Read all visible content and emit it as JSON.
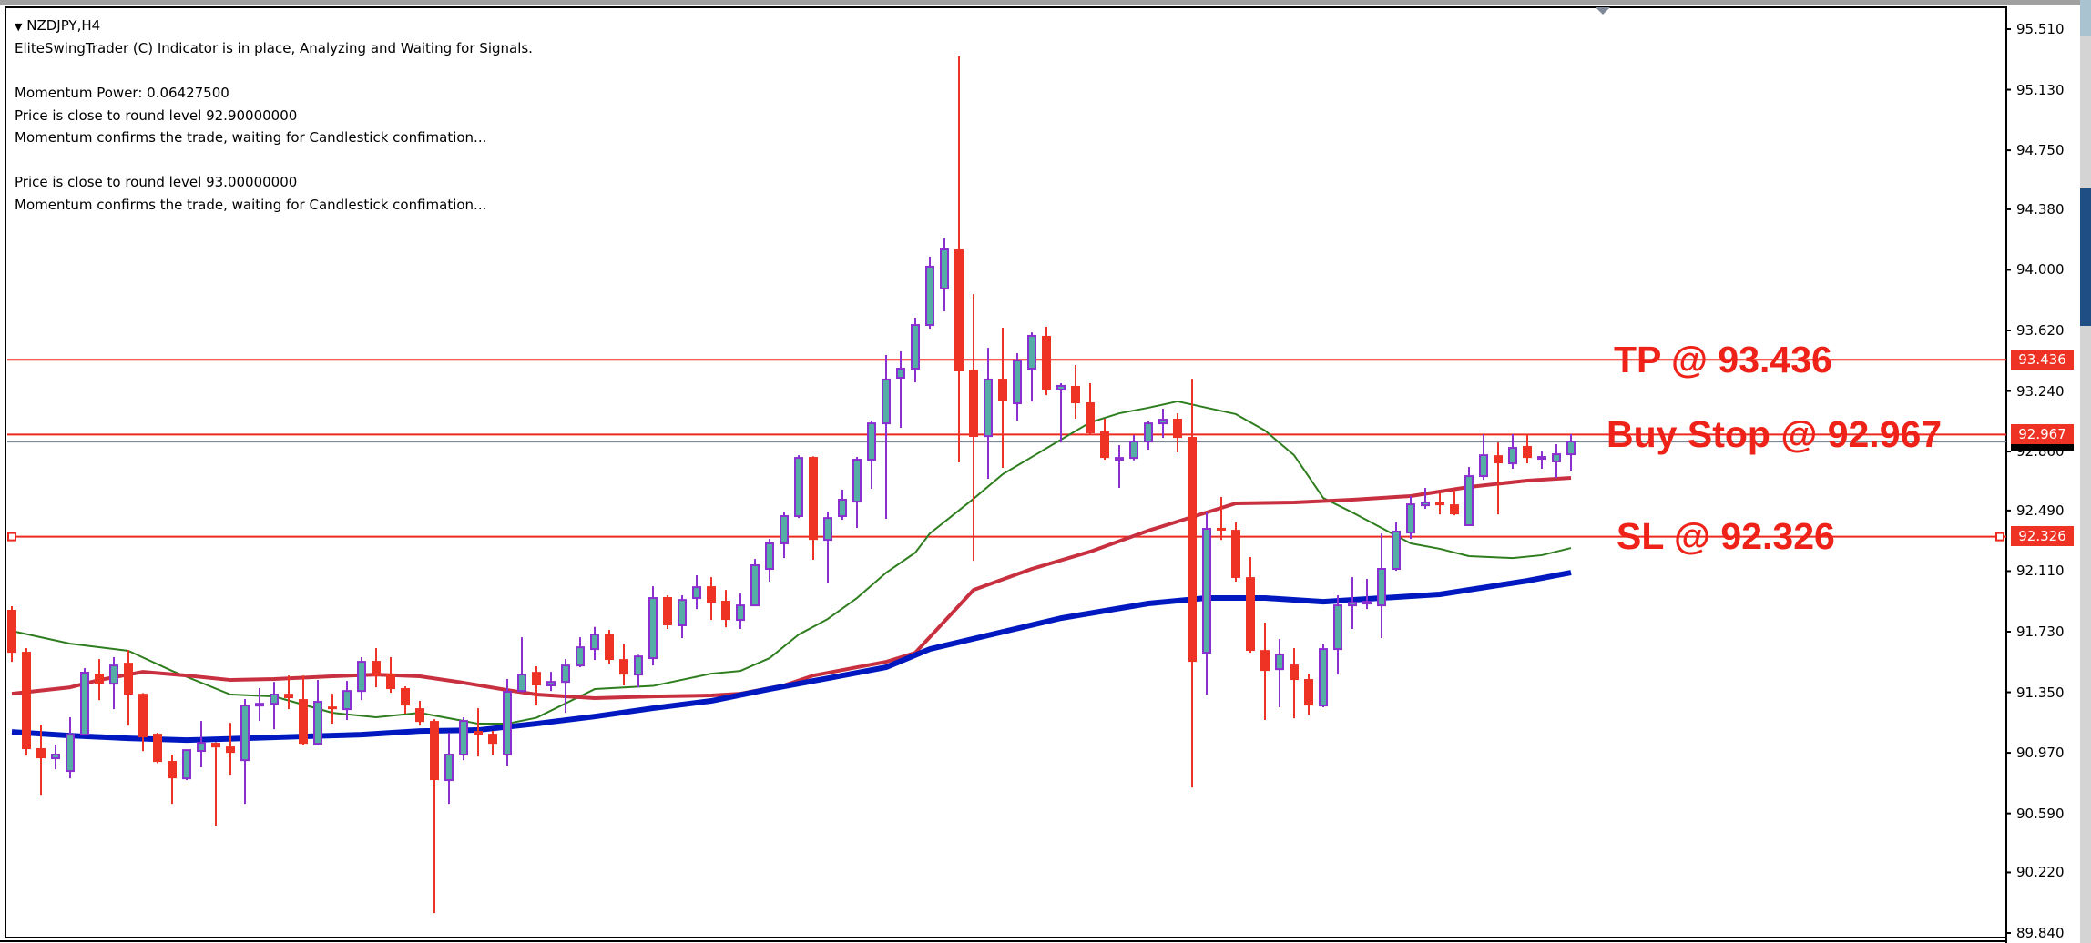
{
  "chart_header": {
    "symbol_timeframe": "NZDJPY,H4",
    "menu_icon": "triangle-down-icon"
  },
  "indicator_messages": [
    "EliteSwingTrader (C) Indicator is in place, Analyzing and Waiting for Signals.",
    "",
    "Momentum Power: 0.06427500",
    "Price is close to round level 92.90000000",
    "Momentum confirms the trade, waiting for Candlestick confimation...",
    "",
    "Price is close to round level 93.00000000",
    "Momentum confirms the trade, waiting for Candlestick confimation..."
  ],
  "signals": {
    "tp": {
      "label": "TP @ 93.436",
      "price": 93.436,
      "axis_label": "93.436"
    },
    "buy_stop": {
      "label": "Buy Stop @ 92.967",
      "price": 92.967,
      "axis_label": "92.967"
    },
    "sl": {
      "label": "SL @ 92.326",
      "price": 92.326,
      "axis_label": "92.326"
    }
  },
  "colors": {
    "bull_fill": "#55aea6",
    "bull_outline": "#8b2fd0",
    "bear": "#ee3224",
    "level_line": "#ee2a20",
    "bid_line": "#7f8896",
    "ma_fast": "#2e7d1e",
    "ma_mid": "#c8303f",
    "ma_slow": "#0018c0"
  },
  "chart_data": {
    "type": "candlestick",
    "symbol": "NZDJPY",
    "timeframe": "H4",
    "ylim": [
      89.84,
      95.51
    ],
    "y_ticks": [
      "95.510",
      "95.130",
      "94.750",
      "94.380",
      "94.000",
      "93.620",
      "93.240",
      "92.860",
      "92.490",
      "92.110",
      "91.730",
      "91.350",
      "90.970",
      "90.590",
      "90.220",
      "89.840"
    ],
    "bid": 92.923,
    "ohlc": [
      [
        91.867,
        91.89,
        91.541,
        91.598
      ],
      [
        91.604,
        91.627,
        90.953,
        90.993
      ],
      [
        90.999,
        91.147,
        90.707,
        90.936
      ],
      [
        90.936,
        91.021,
        90.867,
        90.959
      ],
      [
        90.856,
        91.193,
        90.81,
        91.084
      ],
      [
        91.084,
        91.501,
        91.08,
        91.473
      ],
      [
        91.467,
        91.558,
        91.301,
        91.404
      ],
      [
        91.404,
        91.57,
        91.244,
        91.518
      ],
      [
        91.535,
        91.615,
        91.141,
        91.336
      ],
      [
        91.341,
        91.345,
        90.981,
        91.067
      ],
      [
        91.09,
        91.096,
        90.905,
        90.913
      ],
      [
        90.919,
        90.959,
        90.65,
        90.81
      ],
      [
        90.81,
        90.99,
        90.799,
        90.987
      ],
      [
        90.982,
        91.17,
        90.879,
        91.033
      ],
      [
        91.033,
        91.036,
        90.513,
        91.004
      ],
      [
        91.01,
        91.158,
        90.833,
        90.97
      ],
      [
        90.924,
        91.307,
        90.65,
        91.267
      ],
      [
        91.267,
        91.376,
        91.17,
        91.278
      ],
      [
        91.278,
        91.415,
        91.118,
        91.336
      ],
      [
        91.341,
        91.455,
        91.244,
        91.313
      ],
      [
        91.307,
        91.455,
        91.02,
        91.027
      ],
      [
        91.027,
        91.427,
        91.016,
        91.29
      ],
      [
        91.261,
        91.341,
        91.153,
        91.244
      ],
      [
        91.244,
        91.421,
        91.176,
        91.358
      ],
      [
        91.358,
        91.57,
        91.301,
        91.541
      ],
      [
        91.547,
        91.627,
        91.381,
        91.45
      ],
      [
        91.467,
        91.57,
        91.347,
        91.37
      ],
      [
        91.376,
        91.387,
        91.216,
        91.267
      ],
      [
        91.25,
        91.296,
        91.141,
        91.164
      ],
      [
        91.17,
        91.181,
        89.965,
        90.799
      ],
      [
        90.799,
        91.096,
        90.65,
        90.959
      ],
      [
        90.959,
        91.193,
        90.924,
        91.17
      ],
      [
        91.107,
        91.25,
        90.947,
        91.084
      ],
      [
        91.09,
        91.107,
        90.959,
        91.027
      ],
      [
        90.959,
        91.433,
        90.89,
        91.353
      ],
      [
        91.358,
        91.695,
        91.35,
        91.461
      ],
      [
        91.478,
        91.513,
        91.267,
        91.393
      ],
      [
        91.393,
        91.478,
        91.358,
        91.415
      ],
      [
        91.415,
        91.558,
        91.221,
        91.518
      ],
      [
        91.518,
        91.695,
        91.507,
        91.632
      ],
      [
        91.621,
        91.76,
        91.553,
        91.712
      ],
      [
        91.718,
        91.741,
        91.53,
        91.553
      ],
      [
        91.558,
        91.65,
        91.393,
        91.461
      ],
      [
        91.461,
        91.585,
        91.381,
        91.575
      ],
      [
        91.564,
        92.015,
        91.518,
        91.941
      ],
      [
        91.947,
        91.958,
        91.747,
        91.77
      ],
      [
        91.77,
        91.958,
        91.69,
        91.929
      ],
      [
        91.941,
        92.084,
        91.872,
        92.009
      ],
      [
        92.015,
        92.072,
        91.804,
        91.912
      ],
      [
        91.924,
        91.992,
        91.758,
        91.804
      ],
      [
        91.804,
        91.969,
        91.747,
        91.895
      ],
      [
        91.895,
        92.186,
        91.89,
        92.147
      ],
      [
        92.124,
        92.312,
        92.044,
        92.284
      ],
      [
        92.284,
        92.483,
        92.192,
        92.455
      ],
      [
        92.455,
        92.837,
        92.443,
        92.82
      ],
      [
        92.826,
        92.83,
        92.181,
        92.306
      ],
      [
        92.306,
        92.483,
        92.038,
        92.443
      ],
      [
        92.455,
        92.621,
        92.432,
        92.558
      ],
      [
        92.546,
        92.826,
        92.381,
        92.809
      ],
      [
        92.809,
        93.055,
        92.626,
        93.037
      ],
      [
        93.037,
        93.466,
        92.438,
        93.312
      ],
      [
        93.323,
        93.489,
        93.009,
        93.38
      ],
      [
        93.38,
        93.7,
        93.294,
        93.654
      ],
      [
        93.654,
        94.083,
        93.631,
        94.02
      ],
      [
        93.883,
        94.197,
        93.74,
        94.128
      ],
      [
        94.128,
        95.339,
        92.792,
        93.363
      ],
      [
        93.374,
        93.848,
        92.175,
        92.952
      ],
      [
        92.957,
        93.511,
        92.689,
        93.312
      ],
      [
        93.317,
        93.637,
        92.758,
        93.18
      ],
      [
        93.163,
        93.477,
        93.055,
        93.431
      ],
      [
        93.38,
        93.608,
        93.174,
        93.586
      ],
      [
        93.586,
        93.643,
        93.214,
        93.249
      ],
      [
        93.249,
        93.289,
        92.917,
        93.272
      ],
      [
        93.272,
        93.403,
        93.066,
        93.163
      ],
      [
        93.169,
        93.289,
        92.97,
        92.975
      ],
      [
        92.986,
        93.066,
        92.809,
        92.82
      ],
      [
        92.809,
        92.9,
        92.632,
        92.82
      ],
      [
        92.82,
        92.963,
        92.805,
        92.923
      ],
      [
        92.923,
        93.05,
        92.872,
        93.037
      ],
      [
        93.037,
        93.129,
        92.946,
        93.06
      ],
      [
        93.066,
        93.1,
        92.855,
        92.946
      ],
      [
        92.952,
        93.317,
        90.753,
        91.541
      ],
      [
        91.598,
        92.478,
        91.336,
        92.375
      ],
      [
        92.381,
        92.575,
        92.306,
        92.364
      ],
      [
        92.369,
        92.415,
        92.044,
        92.067
      ],
      [
        92.072,
        92.198,
        91.598,
        91.61
      ],
      [
        91.615,
        91.787,
        91.176,
        91.484
      ],
      [
        91.495,
        91.684,
        91.256,
        91.587
      ],
      [
        91.524,
        91.627,
        91.187,
        91.427
      ],
      [
        91.433,
        91.467,
        91.21,
        91.267
      ],
      [
        91.267,
        91.65,
        91.256,
        91.621
      ],
      [
        91.621,
        91.958,
        91.461,
        91.895
      ],
      [
        91.895,
        92.072,
        91.747,
        91.912
      ],
      [
        91.907,
        92.061,
        91.872,
        91.918
      ],
      [
        91.895,
        92.346,
        91.69,
        92.124
      ],
      [
        92.124,
        92.415,
        92.112,
        92.358
      ],
      [
        92.352,
        92.581,
        92.312,
        92.529
      ],
      [
        92.523,
        92.632,
        92.501,
        92.541
      ],
      [
        92.541,
        92.603,
        92.466,
        92.523
      ],
      [
        92.529,
        92.621,
        92.46,
        92.466
      ],
      [
        92.398,
        92.763,
        92.395,
        92.706
      ],
      [
        92.706,
        92.969,
        92.683,
        92.837
      ],
      [
        92.837,
        92.917,
        92.466,
        92.786
      ],
      [
        92.786,
        92.969,
        92.752,
        92.883
      ],
      [
        92.895,
        92.969,
        92.786,
        92.82
      ],
      [
        92.815,
        92.86,
        92.752,
        92.826
      ],
      [
        92.798,
        92.906,
        92.695,
        92.843
      ],
      [
        92.843,
        92.969,
        92.74,
        92.923
      ]
    ],
    "moving_averages": [
      {
        "role": "fast",
        "points": [
          [
            0,
            91.735
          ],
          [
            4,
            91.655
          ],
          [
            8,
            91.61
          ],
          [
            11,
            91.484
          ],
          [
            15,
            91.336
          ],
          [
            18,
            91.324
          ],
          [
            22,
            91.221
          ],
          [
            25,
            91.193
          ],
          [
            28,
            91.221
          ],
          [
            32,
            91.153
          ],
          [
            34,
            91.153
          ],
          [
            36,
            91.19
          ],
          [
            40,
            91.37
          ],
          [
            44,
            91.39
          ],
          [
            48,
            91.467
          ],
          [
            50,
            91.484
          ],
          [
            52,
            91.564
          ],
          [
            54,
            91.712
          ],
          [
            56,
            91.81
          ],
          [
            58,
            91.941
          ],
          [
            60,
            92.1
          ],
          [
            62,
            92.226
          ],
          [
            63,
            92.346
          ],
          [
            66,
            92.564
          ],
          [
            68,
            92.718
          ],
          [
            70,
            92.826
          ],
          [
            72,
            92.935
          ],
          [
            74,
            93.043
          ],
          [
            76,
            93.1
          ],
          [
            78,
            93.135
          ],
          [
            80,
            93.175
          ],
          [
            82,
            93.135
          ],
          [
            84,
            93.095
          ],
          [
            86,
            92.992
          ],
          [
            88,
            92.837
          ],
          [
            90,
            92.569
          ],
          [
            92,
            92.478
          ],
          [
            94,
            92.381
          ],
          [
            96,
            92.284
          ],
          [
            98,
            92.25
          ],
          [
            100,
            92.204
          ],
          [
            103,
            92.192
          ],
          [
            105,
            92.21
          ],
          [
            107,
            92.255
          ]
        ]
      },
      {
        "role": "mid",
        "points": [
          [
            0,
            91.341
          ],
          [
            4,
            91.381
          ],
          [
            6,
            91.427
          ],
          [
            9,
            91.478
          ],
          [
            12,
            91.455
          ],
          [
            15,
            91.427
          ],
          [
            18,
            91.433
          ],
          [
            22,
            91.45
          ],
          [
            25,
            91.461
          ],
          [
            28,
            91.45
          ],
          [
            31,
            91.41
          ],
          [
            34,
            91.364
          ],
          [
            36,
            91.336
          ],
          [
            40,
            91.313
          ],
          [
            44,
            91.324
          ],
          [
            48,
            91.33
          ],
          [
            50,
            91.341
          ],
          [
            53,
            91.393
          ],
          [
            55,
            91.455
          ],
          [
            58,
            91.507
          ],
          [
            60,
            91.541
          ],
          [
            62,
            91.598
          ],
          [
            66,
            91.992
          ],
          [
            70,
            92.124
          ],
          [
            74,
            92.232
          ],
          [
            78,
            92.364
          ],
          [
            80,
            92.421
          ],
          [
            82,
            92.478
          ],
          [
            84,
            92.535
          ],
          [
            88,
            92.541
          ],
          [
            92,
            92.558
          ],
          [
            96,
            92.581
          ],
          [
            100,
            92.638
          ],
          [
            104,
            92.678
          ],
          [
            107,
            92.695
          ]
        ]
      },
      {
        "role": "slow",
        "points": [
          [
            0,
            91.101
          ],
          [
            4,
            91.078
          ],
          [
            8,
            91.061
          ],
          [
            12,
            91.05
          ],
          [
            16,
            91.061
          ],
          [
            20,
            91.073
          ],
          [
            24,
            91.084
          ],
          [
            28,
            91.107
          ],
          [
            32,
            91.113
          ],
          [
            36,
            91.153
          ],
          [
            40,
            91.198
          ],
          [
            44,
            91.25
          ],
          [
            48,
            91.296
          ],
          [
            52,
            91.37
          ],
          [
            56,
            91.438
          ],
          [
            60,
            91.507
          ],
          [
            63,
            91.621
          ],
          [
            72,
            91.815
          ],
          [
            78,
            91.907
          ],
          [
            82,
            91.941
          ],
          [
            86,
            91.941
          ],
          [
            90,
            91.918
          ],
          [
            94,
            91.941
          ],
          [
            98,
            91.964
          ],
          [
            102,
            92.021
          ],
          [
            104,
            92.049
          ],
          [
            107,
            92.101
          ]
        ]
      }
    ]
  }
}
